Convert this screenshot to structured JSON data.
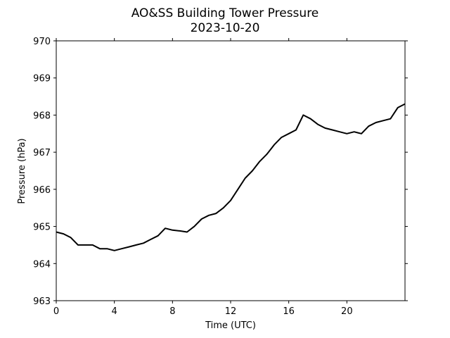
{
  "chart_data": {
    "type": "line",
    "title": "AO&SS Building Tower Pressure",
    "subtitle": "2023-10-20",
    "xlabel": "Time (UTC)",
    "ylabel": "Pressure (hPa)",
    "xlim": [
      0,
      24
    ],
    "ylim": [
      963,
      970
    ],
    "xticks": [
      0,
      4,
      8,
      12,
      16,
      20
    ],
    "yticks": [
      963,
      964,
      965,
      966,
      967,
      968,
      969,
      970
    ],
    "grid": false,
    "line_color": "#000000",
    "series": [
      {
        "x": [
          0,
          0.5,
          1,
          1.5,
          2,
          2.5,
          3,
          3.5,
          4,
          4.5,
          5,
          5.5,
          6,
          6.5,
          7,
          7.5,
          8,
          8.5,
          9,
          9.5,
          10,
          10.5,
          11,
          11.5,
          12,
          12.5,
          13,
          13.5,
          14,
          14.5,
          15,
          15.5,
          16,
          16.5,
          17,
          17.5,
          18,
          18.5,
          19,
          19.5,
          20,
          20.5,
          21,
          21.5,
          22,
          22.5,
          23,
          23.5,
          24
        ],
        "y": [
          964.85,
          964.8,
          964.7,
          964.5,
          964.5,
          964.5,
          964.4,
          964.4,
          964.35,
          964.4,
          964.45,
          964.5,
          964.55,
          964.65,
          964.75,
          964.95,
          964.9,
          964.88,
          964.85,
          965.0,
          965.2,
          965.3,
          965.35,
          965.5,
          965.7,
          966.0,
          966.3,
          966.5,
          966.75,
          966.95,
          967.2,
          967.4,
          967.5,
          967.6,
          968.0,
          967.9,
          967.75,
          967.65,
          967.6,
          967.55,
          967.5,
          967.55,
          967.5,
          967.7,
          967.8,
          967.85,
          967.9,
          968.2,
          968.3
        ]
      }
    ]
  }
}
